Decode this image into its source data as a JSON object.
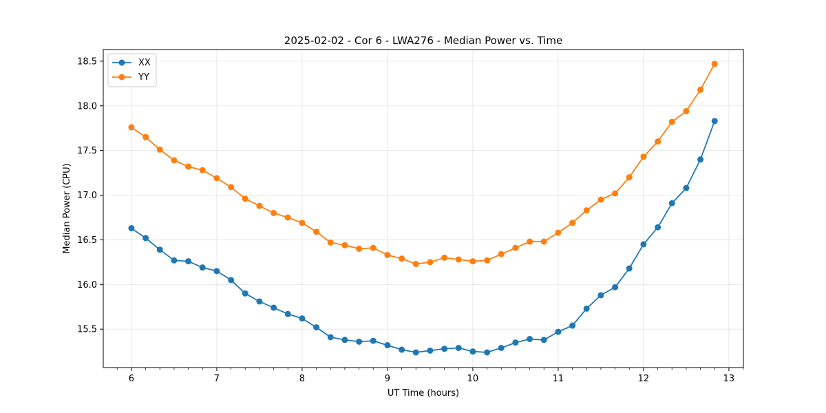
{
  "chart_data": {
    "type": "line",
    "title": "2025-02-02 - Cor 6 - LWA276 - Median Power vs. Time",
    "xlabel": "UT Time (hours)",
    "ylabel": "Median Power (CPU)",
    "xlim": [
      5.67,
      13.17
    ],
    "ylim": [
      15.07,
      18.63
    ],
    "xticks": [
      6,
      7,
      8,
      9,
      10,
      11,
      12,
      13
    ],
    "xtick_labels": [
      "6",
      "7",
      "8",
      "9",
      "10",
      "11",
      "12",
      "13"
    ],
    "yticks": [
      15.5,
      16.0,
      16.5,
      17.0,
      17.5,
      18.0,
      18.5
    ],
    "ytick_labels": [
      "15.5",
      "16.0",
      "16.5",
      "17.0",
      "17.5",
      "18.0",
      "18.5"
    ],
    "grid": true,
    "legend_position": "top-left",
    "x": [
      6.0,
      6.167,
      6.333,
      6.5,
      6.667,
      6.833,
      7.0,
      7.167,
      7.333,
      7.5,
      7.667,
      7.833,
      8.0,
      8.167,
      8.333,
      8.5,
      8.667,
      8.833,
      9.0,
      9.167,
      9.333,
      9.5,
      9.667,
      9.833,
      10.0,
      10.167,
      10.333,
      10.5,
      10.667,
      10.833,
      11.0,
      11.167,
      11.333,
      11.5,
      11.667,
      11.833,
      12.0,
      12.167,
      12.333,
      12.5,
      12.667,
      12.833
    ],
    "series": [
      {
        "name": "XX",
        "color": "#1f77b4",
        "values": [
          16.63,
          16.52,
          16.39,
          16.27,
          16.26,
          16.19,
          16.15,
          16.05,
          15.9,
          15.81,
          15.74,
          15.67,
          15.62,
          15.52,
          15.41,
          15.38,
          15.36,
          15.37,
          15.32,
          15.27,
          15.24,
          15.26,
          15.28,
          15.29,
          15.25,
          15.24,
          15.29,
          15.35,
          15.39,
          15.38,
          15.47,
          15.54,
          15.73,
          15.88,
          15.97,
          16.18,
          16.45,
          16.64,
          16.91,
          17.08,
          17.4,
          17.83
        ]
      },
      {
        "name": "YY",
        "color": "#ff7f0e",
        "values": [
          17.76,
          17.65,
          17.51,
          17.39,
          17.32,
          17.28,
          17.19,
          17.09,
          16.96,
          16.88,
          16.8,
          16.75,
          16.69,
          16.59,
          16.47,
          16.44,
          16.4,
          16.41,
          16.33,
          16.29,
          16.23,
          16.25,
          16.3,
          16.28,
          16.26,
          16.27,
          16.34,
          16.41,
          16.48,
          16.48,
          16.58,
          16.69,
          16.83,
          16.95,
          17.02,
          17.2,
          17.43,
          17.6,
          17.82,
          17.94,
          18.18,
          18.47
        ]
      }
    ]
  }
}
